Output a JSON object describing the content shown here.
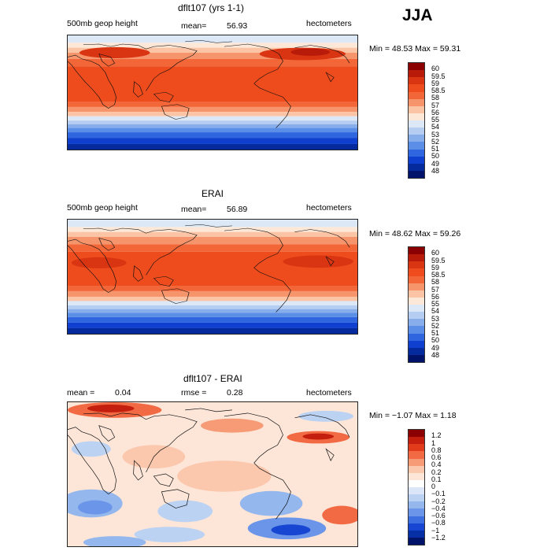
{
  "season": "JJA",
  "panels": [
    {
      "title": "dflt107 (yrs 1-1)",
      "left_label": "500mb geop height",
      "mean_text": "mean=",
      "mean_value": "56.93",
      "units": "hectometers",
      "minmax": "Min =  48.53 Max =  59.31",
      "levels": [
        "60",
        "59.5",
        "59",
        "58.5",
        "58",
        "57",
        "56",
        "55",
        "54",
        "53",
        "52",
        "51",
        "50",
        "49",
        "48"
      ]
    },
    {
      "title": "ERAI",
      "left_label": "500mb geop height",
      "mean_text": "mean=",
      "mean_value": "56.89",
      "units": "hectometers",
      "minmax": "Min =  48.62 Max =  59.26",
      "levels": [
        "60",
        "59.5",
        "59",
        "58.5",
        "58",
        "57",
        "56",
        "55",
        "54",
        "53",
        "52",
        "51",
        "50",
        "49",
        "48"
      ]
    },
    {
      "title": "dflt107 - ERAI",
      "mean_text": "mean =",
      "mean_value": "0.04",
      "rmse_text": "rmse =",
      "rmse_value": "0.28",
      "units": "hectometers",
      "minmax": "Min = −1.07 Max =   1.18",
      "levels": [
        "1.2",
        "1",
        "0.8",
        "0.6",
        "0.4",
        "0.2",
        "0.1",
        "0",
        "−0.1",
        "−0.2",
        "−0.4",
        "−0.6",
        "−0.8",
        "−1",
        "−1.2"
      ]
    }
  ],
  "colors": {
    "abs_scale": [
      "#8b0000",
      "#b81b0a",
      "#d93512",
      "#ee4c1d",
      "#f26637",
      "#f6956b",
      "#fbc4a4",
      "#fde8d8",
      "#dde8f6",
      "#b4cdf0",
      "#87aeea",
      "#5b8ee6",
      "#2f66e0",
      "#0f3fcf",
      "#052a9d",
      "#00136b"
    ],
    "anom_scale": [
      "#8b0000",
      "#c41e0e",
      "#e23b1b",
      "#f26a43",
      "#f79b76",
      "#fbc7ad",
      "#fde6d8",
      "#ffffff",
      "#dbe7f8",
      "#bcd2f3",
      "#94b7ee",
      "#6a95e8",
      "#3d6fe0",
      "#1646d2",
      "#062fa6",
      "#00136b"
    ],
    "coast": "#111111"
  }
}
